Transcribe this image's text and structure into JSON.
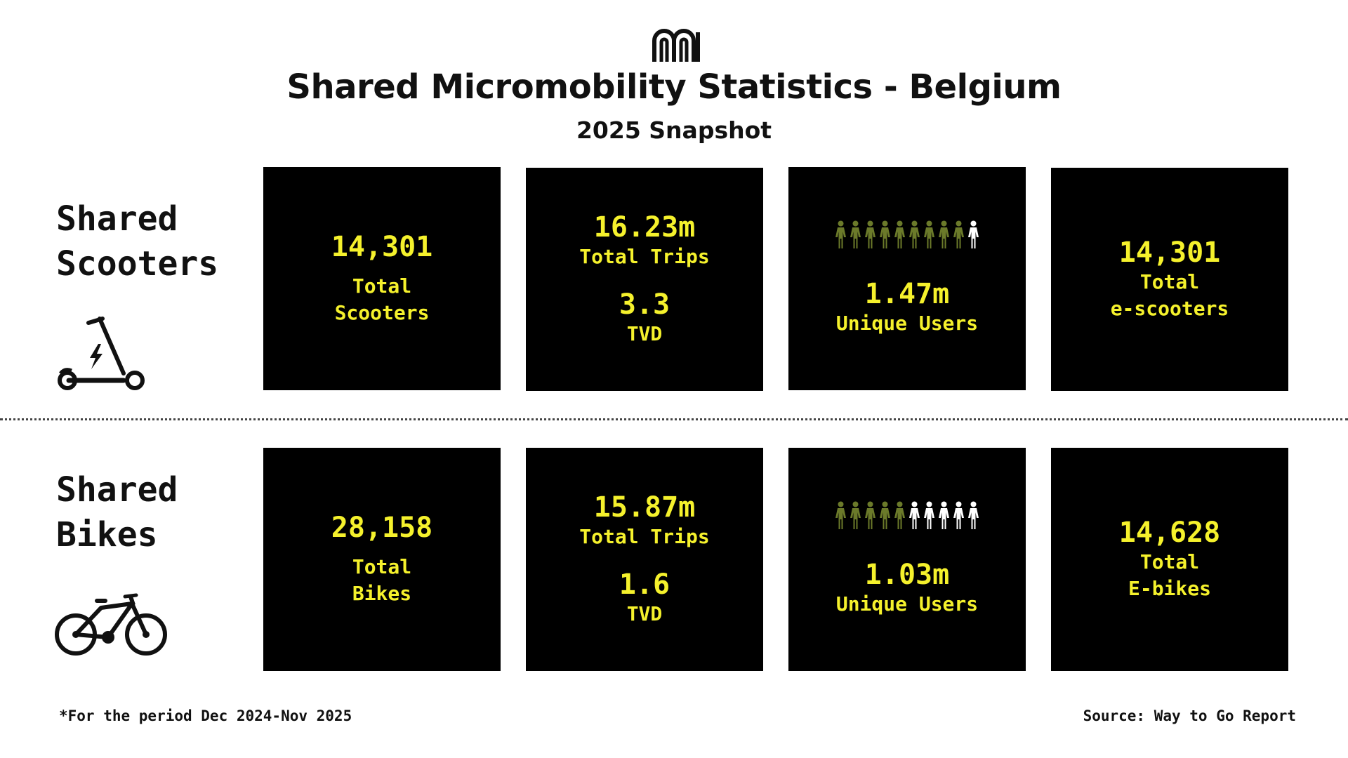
{
  "header": {
    "logo_icon": "mm-logo-icon",
    "title": "Shared Micromobility Statistics - Belgium",
    "subtitle": "2025 Snapshot"
  },
  "colors": {
    "card_bg": "#000000",
    "accent": "#f5f12c",
    "person_filled": "#6b7a2a",
    "person_empty": "#ffffff"
  },
  "scooters": {
    "label_line1": "Shared",
    "label_line2": "Scooters",
    "icon": "e-scooter-icon",
    "cards": {
      "fleet": {
        "value": "14,301",
        "label1": "Total",
        "label2": "Scooters"
      },
      "trips": {
        "value": "16.23m",
        "label": "Total Trips",
        "tvd_value": "3.3",
        "tvd_label": "TVD"
      },
      "users": {
        "value": "1.47m",
        "label": "Unique Users",
        "people_filled": 9,
        "people_total": 10
      },
      "electric": {
        "value": "14,301",
        "label1": "Total",
        "label2": "e-scooters"
      }
    }
  },
  "bikes": {
    "label_line1": "Shared",
    "label_line2": "Bikes",
    "icon": "e-bike-icon",
    "cards": {
      "fleet": {
        "value": "28,158",
        "label1": "Total",
        "label2": "Bikes"
      },
      "trips": {
        "value": "15.87m",
        "label": "Total Trips",
        "tvd_value": "1.6",
        "tvd_label": "TVD"
      },
      "users": {
        "value": "1.03m",
        "label": "Unique Users",
        "people_filled": 5,
        "people_total": 10
      },
      "electric": {
        "value": "14,628",
        "label1": "Total",
        "label2": "E-bikes"
      }
    }
  },
  "footer": {
    "footnote": "*For the period Dec 2024-Nov 2025",
    "source": "Source: Way to Go Report"
  }
}
